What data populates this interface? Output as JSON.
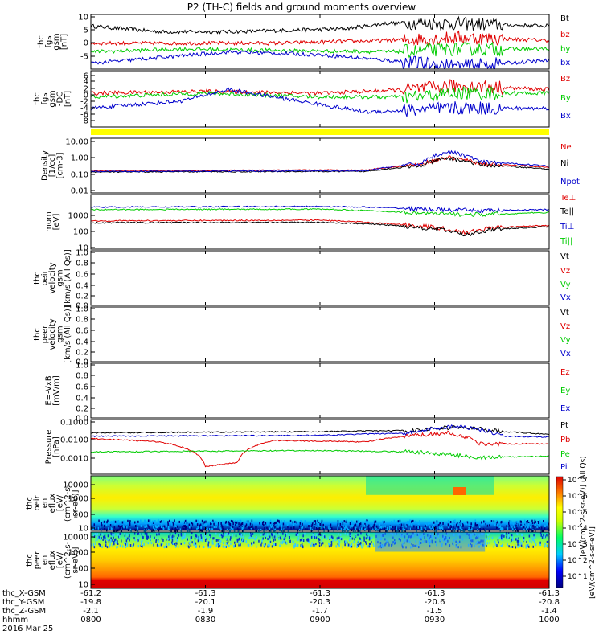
{
  "title": "P2 (TH-C) fields and ground moments overview",
  "date_label": "2016 Mar 25",
  "colors": {
    "black": "#000000",
    "red": "#e00000",
    "green": "#00cc00",
    "blue": "#0000cc",
    "yellow": "#ffff00"
  },
  "chart_data": [
    {
      "type": "line",
      "id": "fgs_gsm",
      "ylabel": [
        "thc",
        "fgs",
        "gsm",
        "[nT]"
      ],
      "yticks": [
        "10",
        "5",
        "0",
        "-5"
      ],
      "ylim": [
        -8,
        11
      ],
      "series": [
        {
          "name": "Bt",
          "color": "#000000",
          "keypoints": [
            [
              0,
              7
            ],
            [
              0.15,
              5
            ],
            [
              0.3,
              5
            ],
            [
              0.55,
              6
            ],
            [
              0.65,
              8
            ],
            [
              0.75,
              8
            ],
            [
              1,
              7
            ]
          ]
        },
        {
          "name": "bz",
          "color": "#e00000",
          "keypoints": [
            [
              0,
              1
            ],
            [
              0.2,
              1
            ],
            [
              0.4,
              1
            ],
            [
              0.65,
              2
            ],
            [
              0.8,
              3
            ],
            [
              1,
              2
            ]
          ]
        },
        {
          "name": "by",
          "color": "#00cc00",
          "keypoints": [
            [
              0,
              -2
            ],
            [
              0.2,
              -1
            ],
            [
              0.4,
              -1.5
            ],
            [
              0.65,
              -2
            ],
            [
              0.8,
              -1
            ],
            [
              1,
              -1
            ]
          ]
        },
        {
          "name": "bx",
          "color": "#0000cc",
          "keypoints": [
            [
              0,
              -6
            ],
            [
              0.15,
              -4
            ],
            [
              0.3,
              -2
            ],
            [
              0.5,
              -3
            ],
            [
              0.65,
              -5
            ],
            [
              0.8,
              -7
            ],
            [
              1,
              -5
            ]
          ]
        }
      ]
    },
    {
      "type": "line",
      "id": "fgs_gsm_dc",
      "ylabel": [
        "thc",
        "fgs",
        "gsm",
        "-DC",
        "[nT]"
      ],
      "yticks": [
        "6",
        "4",
        "2",
        "0",
        "-2",
        "-4",
        "-6",
        "-8"
      ],
      "ylim": [
        -9,
        6
      ],
      "series": [
        {
          "name": "Bz",
          "color": "#e00000",
          "keypoints": [
            [
              0,
              0
            ],
            [
              0.25,
              0.5
            ],
            [
              0.5,
              0
            ],
            [
              0.7,
              1
            ],
            [
              0.8,
              2
            ],
            [
              1,
              1
            ]
          ]
        },
        {
          "name": "By",
          "color": "#00cc00",
          "keypoints": [
            [
              0,
              -1
            ],
            [
              0.25,
              0
            ],
            [
              0.5,
              -1
            ],
            [
              0.7,
              -1
            ],
            [
              0.8,
              0
            ],
            [
              1,
              0
            ]
          ]
        },
        {
          "name": "Bx",
          "color": "#0000cc",
          "keypoints": [
            [
              0,
              -4
            ],
            [
              0.2,
              -2
            ],
            [
              0.3,
              1
            ],
            [
              0.45,
              -2
            ],
            [
              0.6,
              -5
            ],
            [
              0.8,
              -4
            ],
            [
              1,
              -4
            ]
          ]
        }
      ]
    },
    {
      "type": "line",
      "id": "density",
      "log": true,
      "ylabel": [
        "Density",
        "[1/cc]",
        "[cm-3]"
      ],
      "yticks": [
        "10.00",
        "1.00",
        "0.10",
        "0.01"
      ],
      "ylim": [
        0.01,
        10
      ],
      "series": [
        {
          "name": "Ne",
          "color": "#e00000",
          "keypoints": [
            [
              0,
              0.16
            ],
            [
              0.5,
              0.18
            ],
            [
              0.6,
              0.18
            ],
            [
              0.72,
              0.35
            ],
            [
              0.78,
              0.9
            ],
            [
              0.85,
              0.4
            ],
            [
              1,
              0.25
            ]
          ]
        },
        {
          "name": "Ni",
          "color": "#000000",
          "keypoints": [
            [
              0,
              0.14
            ],
            [
              0.5,
              0.15
            ],
            [
              0.6,
              0.15
            ],
            [
              0.72,
              0.3
            ],
            [
              0.78,
              0.8
            ],
            [
              0.85,
              0.35
            ],
            [
              1,
              0.2
            ]
          ]
        },
        {
          "name": "Npot",
          "color": "#0000cc",
          "keypoints": [
            [
              0,
              0.15
            ],
            [
              0.5,
              0.16
            ],
            [
              0.6,
              0.16
            ],
            [
              0.72,
              0.4
            ],
            [
              0.78,
              1.8
            ],
            [
              0.85,
              0.5
            ],
            [
              1,
              0.3
            ]
          ]
        }
      ]
    },
    {
      "type": "line",
      "id": "moments",
      "log": true,
      "ylabel": [
        "mom",
        "[eV]"
      ],
      "yticks": [
        "1000",
        "100",
        "10"
      ],
      "ylim": [
        10,
        5000
      ],
      "series": [
        {
          "name": "Te⊥",
          "color": "#e00000",
          "keypoints": [
            [
              0,
              250
            ],
            [
              0.5,
              270
            ],
            [
              0.62,
              200
            ],
            [
              0.75,
              120
            ],
            [
              0.82,
              60
            ],
            [
              0.87,
              110
            ],
            [
              1,
              150
            ]
          ]
        },
        {
          "name": "Te||",
          "color": "#000000",
          "keypoints": [
            [
              0,
              200
            ],
            [
              0.5,
              210
            ],
            [
              0.62,
              170
            ],
            [
              0.75,
              100
            ],
            [
              0.82,
              50
            ],
            [
              0.87,
              90
            ],
            [
              1,
              130
            ]
          ]
        },
        {
          "name": "Ti⊥",
          "color": "#0000cc",
          "keypoints": [
            [
              0,
              1200
            ],
            [
              0.5,
              1300
            ],
            [
              0.6,
              1200
            ],
            [
              0.75,
              900
            ],
            [
              0.85,
              800
            ],
            [
              1,
              900
            ]
          ]
        },
        {
          "name": "Ti||",
          "color": "#00cc00",
          "keypoints": [
            [
              0,
              900
            ],
            [
              0.5,
              950
            ],
            [
              0.6,
              800
            ],
            [
              0.75,
              550
            ],
            [
              0.85,
              500
            ],
            [
              1,
              650
            ]
          ]
        }
      ]
    },
    {
      "type": "line",
      "id": "peir_velocity",
      "empty": true,
      "ylabel": [
        "thc",
        "peir",
        "velocity",
        "gsm",
        "[km/s (All Qs)]"
      ],
      "yticks": [
        "1.0",
        "0.8",
        "0.6",
        "0.4",
        "0.2",
        "0.0"
      ],
      "series": [
        {
          "name": "Vt",
          "color": "#000000"
        },
        {
          "name": "Vz",
          "color": "#e00000"
        },
        {
          "name": "Vy",
          "color": "#00cc00"
        },
        {
          "name": "Vx",
          "color": "#0000cc"
        }
      ]
    },
    {
      "type": "line",
      "id": "peer_velocity",
      "empty": true,
      "ylabel": [
        "thc",
        "peer",
        "velocity",
        "gsm",
        "[km/s (All Qs)]"
      ],
      "yticks": [
        "1.0",
        "0.8",
        "0.6",
        "0.4",
        "0.2",
        "0.0"
      ],
      "series": [
        {
          "name": "Vt",
          "color": "#000000"
        },
        {
          "name": "Vz",
          "color": "#e00000"
        },
        {
          "name": "Vy",
          "color": "#00cc00"
        },
        {
          "name": "Vx",
          "color": "#0000cc"
        }
      ]
    },
    {
      "type": "line",
      "id": "efield",
      "empty": true,
      "ylabel": [
        "E=-VxB",
        "[mV/m]"
      ],
      "yticks": [
        "1.0",
        "0.8",
        "0.6",
        "0.4",
        "0.2",
        "0.0"
      ],
      "series": [
        {
          "name": "Ez",
          "color": "#e00000"
        },
        {
          "name": "Ey",
          "color": "#00cc00"
        },
        {
          "name": "Ex",
          "color": "#0000cc"
        }
      ]
    },
    {
      "type": "line",
      "id": "pressure",
      "log": true,
      "ylabel": [
        "Pressure",
        "[nPa]"
      ],
      "yticks": [
        "0.1000",
        "0.0100",
        "0.0010"
      ],
      "ylim": [
        0.0002,
        0.15
      ],
      "series": [
        {
          "name": "Pt",
          "color": "#000000",
          "keypoints": [
            [
              0,
              0.03
            ],
            [
              0.5,
              0.035
            ],
            [
              0.7,
              0.04
            ],
            [
              0.8,
              0.06
            ],
            [
              0.9,
              0.035
            ],
            [
              1,
              0.025
            ]
          ]
        },
        {
          "name": "Pb",
          "color": "#e00000",
          "keypoints": [
            [
              0,
              0.015
            ],
            [
              0.15,
              0.01
            ],
            [
              0.25,
              0.0005
            ],
            [
              0.32,
              0.0008
            ],
            [
              0.4,
              0.012
            ],
            [
              0.6,
              0.01
            ],
            [
              0.78,
              0.03
            ],
            [
              0.85,
              0.008
            ],
            [
              1,
              0.008
            ]
          ]
        },
        {
          "name": "Pe",
          "color": "#00cc00",
          "keypoints": [
            [
              0,
              0.003
            ],
            [
              0.5,
              0.0035
            ],
            [
              0.7,
              0.003
            ],
            [
              0.85,
              0.0015
            ],
            [
              1,
              0.0018
            ]
          ]
        },
        {
          "name": "Pi",
          "color": "#0000cc",
          "keypoints": [
            [
              0,
              0.02
            ],
            [
              0.5,
              0.022
            ],
            [
              0.7,
              0.03
            ],
            [
              0.8,
              0.07
            ],
            [
              0.9,
              0.02
            ],
            [
              1,
              0.018
            ]
          ]
        }
      ]
    },
    {
      "type": "heatmap",
      "id": "peir_eflux",
      "ylabel": [
        "thc",
        "peir",
        "en",
        "eflux",
        "[eV/",
        "(cm^2-s-",
        "sr-eV)]"
      ],
      "yticks": [
        "10000",
        "1000",
        "100",
        "10"
      ]
    },
    {
      "type": "heatmap",
      "id": "peer_eflux",
      "ylabel": [
        "thc",
        "peer",
        "en",
        "eflux",
        "[eV/",
        "(cm^2-s-",
        "sr-eV)]"
      ],
      "yticks": [
        "10000",
        "1000",
        "100",
        "10"
      ]
    }
  ],
  "colorbar": {
    "label_top": "[eV/(cm^2-s-sr-eV)] (All Qs)",
    "label_bottom": "[eV/(cm^2-s-sr-eV)]",
    "ticks": [
      "10^7",
      "10^6",
      "10^5",
      "10^4",
      "10^3",
      "10^2",
      "10^1"
    ]
  },
  "xaxis": {
    "row_labels": [
      "thc_X-GSM",
      "thc_Y-GSM",
      "thc_Z-GSM",
      "hhmm"
    ],
    "columns": [
      [
        "-61.2",
        "-19.8",
        "-2.1",
        "0800"
      ],
      [
        "-61.3",
        "-20.1",
        "-1.9",
        "0830"
      ],
      [
        "-61.3",
        "-20.3",
        "-1.7",
        "0900"
      ],
      [
        "-61.3",
        "-20.6",
        "-1.5",
        "0930"
      ],
      [
        "-61.3",
        "-20.8",
        "-1.4",
        "1000"
      ]
    ]
  }
}
